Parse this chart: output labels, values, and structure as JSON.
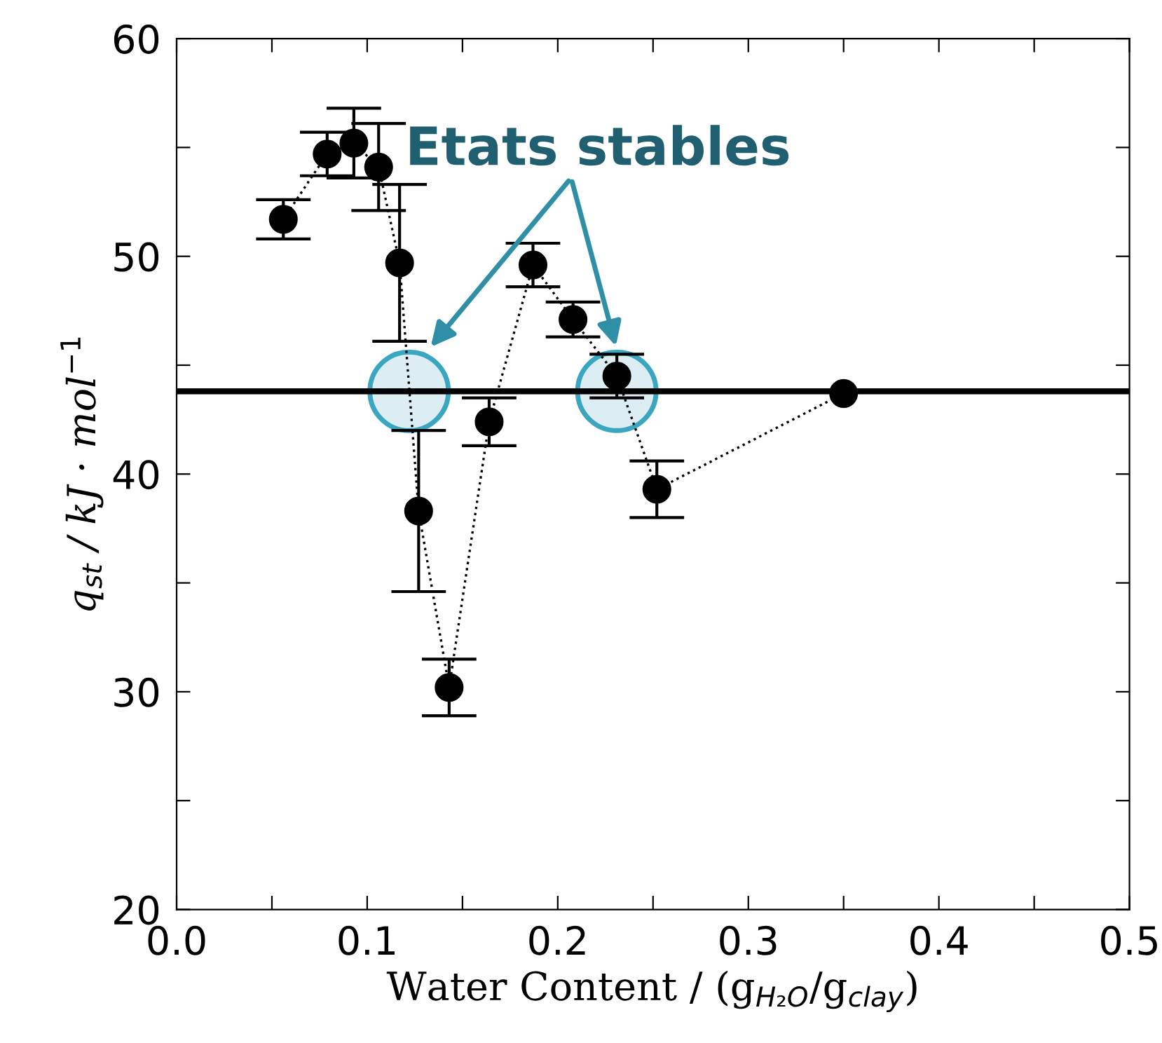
{
  "chart_data": {
    "type": "line",
    "xlabel": "Water Content / (g$_{H₂O}$/g$_{clay}$)",
    "ylabel": "q$_{st}$ / kJ · mol$^{−1}$",
    "x": [
      0.056,
      0.079,
      0.093,
      0.106,
      0.117,
      0.127,
      0.143,
      0.164,
      0.187,
      0.208,
      0.231,
      0.252,
      0.35
    ],
    "series": [
      {
        "color": "#000000",
        "line_style": "dotted",
        "marker": "circle",
        "values": [
          51.7,
          54.7,
          55.2,
          54.1,
          49.7,
          38.3,
          30.2,
          42.4,
          49.6,
          47.1,
          44.5,
          39.3,
          43.7
        ],
        "errors": [
          0.9,
          1.0,
          1.6,
          2.0,
          3.6,
          3.7,
          1.3,
          1.1,
          1.0,
          0.8,
          1.0,
          1.3,
          null
        ]
      }
    ],
    "xlim": [
      0.0,
      0.5
    ],
    "ylim": [
      20,
      60
    ],
    "xticks": [
      {
        "value": 0.0,
        "label": "0.0"
      },
      {
        "value": 0.05,
        "label": null
      },
      0.1,
      {
        "value": 0.15,
        "label": null
      },
      0.2,
      {
        "value": 0.25,
        "label": null
      },
      0.3,
      {
        "value": 0.35,
        "label": null
      },
      0.4,
      {
        "value": 0.45,
        "label": null
      },
      0.5
    ],
    "yticks": [
      20,
      {
        "value": 25,
        "label": null
      },
      30,
      {
        "value": 35,
        "label": null
      },
      40,
      {
        "value": 45,
        "label": null
      },
      50,
      {
        "value": 55,
        "label": null
      },
      60
    ],
    "ref_lines": [
      {
        "axis": "y",
        "value": 43.8,
        "color": "#000000",
        "line_style": "solid"
      }
    ],
    "annotations": [
      "Etats stables"
    ],
    "grid": false,
    "legend": false
  }
}
